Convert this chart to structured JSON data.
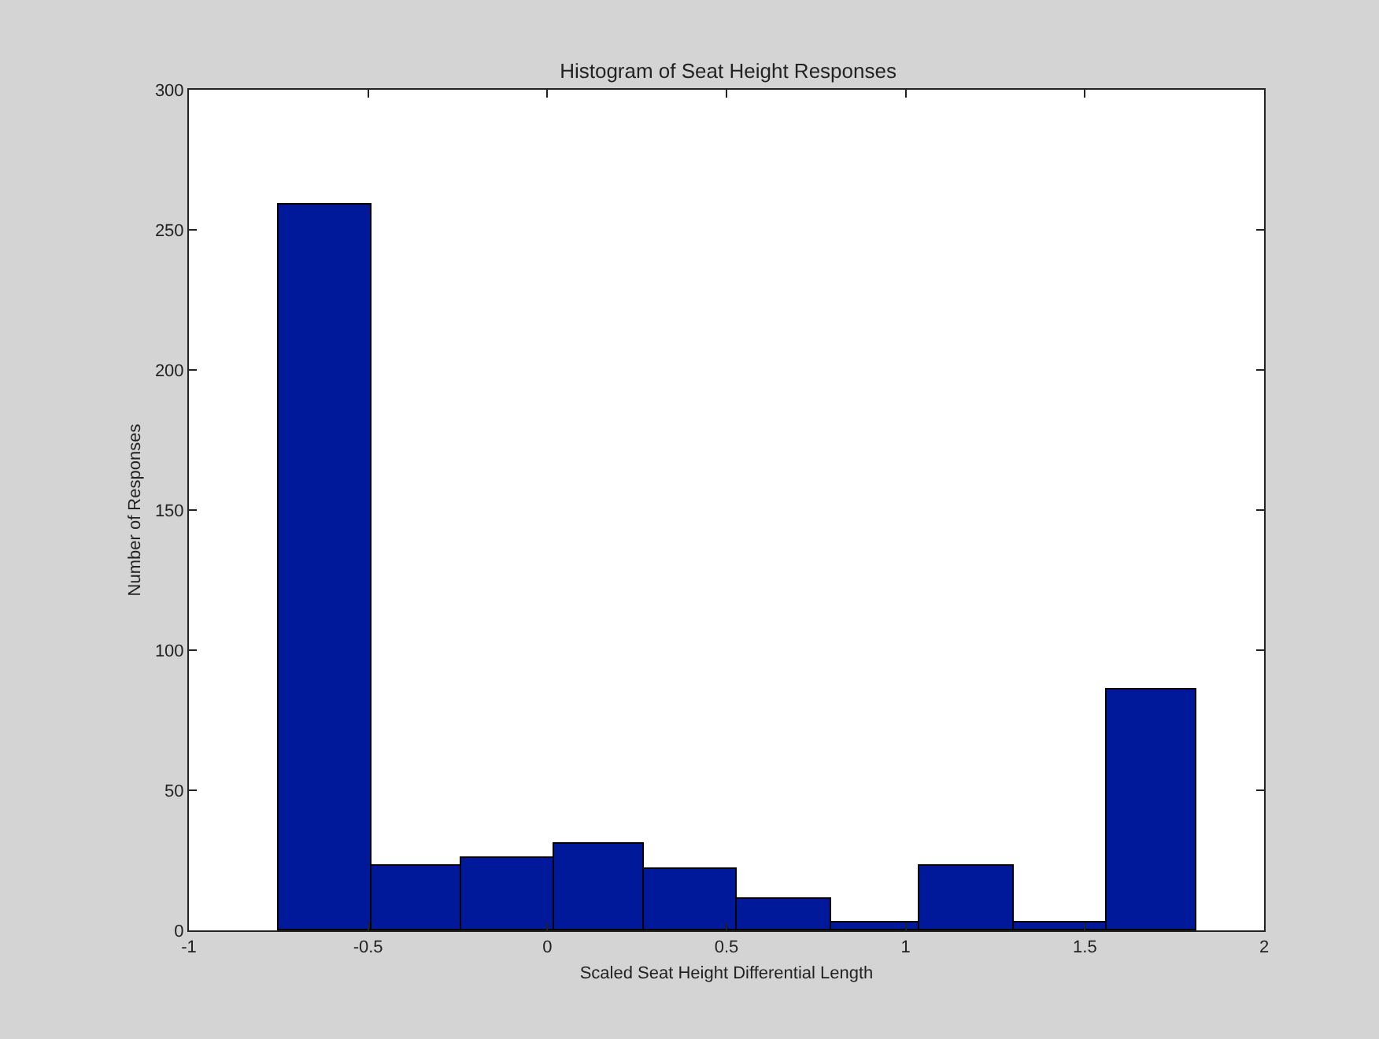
{
  "chart_data": {
    "type": "histogram",
    "title": "Histogram of Seat Height Responses",
    "xlabel": "Scaled Seat Height Differential Length",
    "ylabel": "Number of Responses",
    "bins": [
      -0.75,
      -0.49,
      -0.24,
      0.02,
      0.27,
      0.53,
      0.79,
      1.04,
      1.3,
      1.56,
      1.81
    ],
    "values": [
      259,
      23,
      26,
      31,
      22,
      11,
      3,
      23,
      3,
      86
    ],
    "color": "#00189a",
    "xlim": [
      -1,
      2
    ],
    "xticks": [
      -1,
      -0.5,
      0,
      0.5,
      1,
      1.5,
      2
    ],
    "ylim": [
      0,
      300
    ],
    "yticks": [
      0,
      50,
      100,
      150,
      200,
      250,
      300
    ],
    "grid": false
  }
}
